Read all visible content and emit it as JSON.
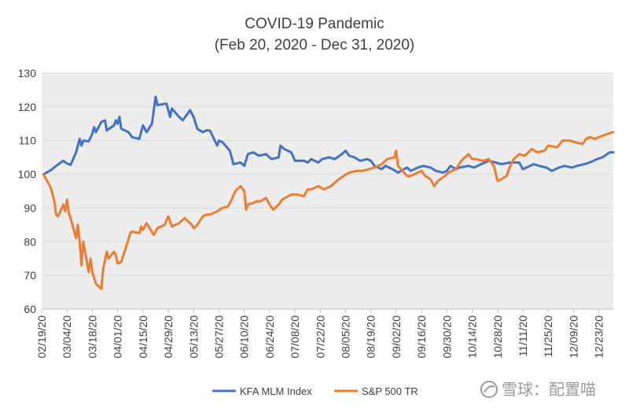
{
  "chart_data": {
    "type": "line",
    "title": "COVID-19 Pandemic",
    "subtitle": "(Feb 20, 2020 - Dec 31, 2020)",
    "xlabel": "",
    "ylabel": "",
    "ylim": [
      60,
      130
    ],
    "yticks": [
      60,
      70,
      80,
      90,
      100,
      110,
      120,
      130
    ],
    "xlim": [
      "2020-02-19",
      "2020-12-31"
    ],
    "xtick_labels": [
      "02/19/20",
      "03/04/20",
      "03/18/20",
      "04/01/20",
      "04/15/20",
      "04/29/20",
      "05/13/20",
      "05/27/20",
      "06/10/20",
      "06/24/20",
      "07/08/20",
      "07/22/20",
      "08/05/20",
      "08/19/20",
      "09/02/20",
      "09/16/20",
      "09/30/20",
      "10/14/20",
      "10/28/20",
      "11/11/20",
      "11/25/20",
      "12/09/20",
      "12/23/20"
    ],
    "grid": "horizontal",
    "legend_position": "bottom",
    "series": [
      {
        "name": "KFA MLM Index",
        "color": "#4472C4",
        "points": [
          [
            "2020-02-20",
            100.0
          ],
          [
            "2020-02-24",
            101.2
          ],
          [
            "2020-02-27",
            102.5
          ],
          [
            "2020-03-02",
            104.0
          ],
          [
            "2020-03-04",
            103.2
          ],
          [
            "2020-03-06",
            102.8
          ],
          [
            "2020-03-09",
            106.5
          ],
          [
            "2020-03-11",
            110.5
          ],
          [
            "2020-03-12",
            108.5
          ],
          [
            "2020-03-13",
            110.0
          ],
          [
            "2020-03-16",
            109.8
          ],
          [
            "2020-03-18",
            112.0
          ],
          [
            "2020-03-19",
            114.0
          ],
          [
            "2020-03-20",
            112.5
          ],
          [
            "2020-03-23",
            115.5
          ],
          [
            "2020-03-25",
            116.0
          ],
          [
            "2020-03-26",
            113.0
          ],
          [
            "2020-03-30",
            114.5
          ],
          [
            "2020-03-31",
            116.0
          ],
          [
            "2020-04-01",
            115.0
          ],
          [
            "2020-04-02",
            117.0
          ],
          [
            "2020-04-03",
            113.5
          ],
          [
            "2020-04-07",
            112.5
          ],
          [
            "2020-04-09",
            111.0
          ],
          [
            "2020-04-13",
            110.5
          ],
          [
            "2020-04-15",
            114.5
          ],
          [
            "2020-04-17",
            112.5
          ],
          [
            "2020-04-20",
            115.0
          ],
          [
            "2020-04-22",
            123.0
          ],
          [
            "2020-04-23",
            120.5
          ],
          [
            "2020-04-28",
            121.0
          ],
          [
            "2020-04-30",
            117.0
          ],
          [
            "2020-05-01",
            119.5
          ],
          [
            "2020-05-05",
            117.0
          ],
          [
            "2020-05-07",
            116.0
          ],
          [
            "2020-05-11",
            119.0
          ],
          [
            "2020-05-13",
            117.0
          ],
          [
            "2020-05-15",
            113.5
          ],
          [
            "2020-05-18",
            112.5
          ],
          [
            "2020-05-20",
            113.0
          ],
          [
            "2020-05-22",
            113.0
          ],
          [
            "2020-05-26",
            108.5
          ],
          [
            "2020-05-27",
            110.0
          ],
          [
            "2020-05-29",
            109.5
          ],
          [
            "2020-06-02",
            107.0
          ],
          [
            "2020-06-04",
            103.0
          ],
          [
            "2020-06-08",
            103.5
          ],
          [
            "2020-06-10",
            102.5
          ],
          [
            "2020-06-12",
            106.0
          ],
          [
            "2020-06-15",
            106.5
          ],
          [
            "2020-06-18",
            105.5
          ],
          [
            "2020-06-22",
            106.0
          ],
          [
            "2020-06-25",
            104.5
          ],
          [
            "2020-06-29",
            105.0
          ],
          [
            "2020-06-30",
            108.5
          ],
          [
            "2020-07-02",
            107.5
          ],
          [
            "2020-07-06",
            106.5
          ],
          [
            "2020-07-08",
            104.0
          ],
          [
            "2020-07-13",
            104.0
          ],
          [
            "2020-07-15",
            103.5
          ],
          [
            "2020-07-17",
            104.5
          ],
          [
            "2020-07-21",
            103.5
          ],
          [
            "2020-07-23",
            104.5
          ],
          [
            "2020-07-27",
            105.0
          ],
          [
            "2020-07-30",
            104.5
          ],
          [
            "2020-08-03",
            106.0
          ],
          [
            "2020-08-05",
            107.0
          ],
          [
            "2020-08-07",
            105.5
          ],
          [
            "2020-08-10",
            105.0
          ],
          [
            "2020-08-13",
            104.0
          ],
          [
            "2020-08-17",
            104.5
          ],
          [
            "2020-08-19",
            104.0
          ],
          [
            "2020-08-21",
            102.5
          ],
          [
            "2020-08-25",
            101.5
          ],
          [
            "2020-08-27",
            102.5
          ],
          [
            "2020-08-31",
            101.5
          ],
          [
            "2020-09-03",
            100.5
          ],
          [
            "2020-09-08",
            102.0
          ],
          [
            "2020-09-10",
            101.0
          ],
          [
            "2020-09-14",
            102.0
          ],
          [
            "2020-09-17",
            102.5
          ],
          [
            "2020-09-21",
            102.0
          ],
          [
            "2020-09-24",
            101.0
          ],
          [
            "2020-09-28",
            100.5
          ],
          [
            "2020-09-30",
            101.0
          ],
          [
            "2020-10-02",
            102.5
          ],
          [
            "2020-10-05",
            101.5
          ],
          [
            "2020-10-07",
            102.0
          ],
          [
            "2020-10-12",
            102.5
          ],
          [
            "2020-10-15",
            102.0
          ],
          [
            "2020-10-19",
            103.0
          ],
          [
            "2020-10-21",
            103.5
          ],
          [
            "2020-10-23",
            104.0
          ],
          [
            "2020-10-27",
            103.5
          ],
          [
            "2020-10-30",
            103.0
          ],
          [
            "2020-11-04",
            103.5
          ],
          [
            "2020-11-09",
            103.5
          ],
          [
            "2020-11-11",
            101.5
          ],
          [
            "2020-11-13",
            102.0
          ],
          [
            "2020-11-17",
            103.0
          ],
          [
            "2020-11-20",
            102.5
          ],
          [
            "2020-11-24",
            102.0
          ],
          [
            "2020-11-27",
            101.0
          ],
          [
            "2020-12-01",
            102.0
          ],
          [
            "2020-12-04",
            102.5
          ],
          [
            "2020-12-08",
            102.0
          ],
          [
            "2020-12-11",
            102.5
          ],
          [
            "2020-12-15",
            103.0
          ],
          [
            "2020-12-18",
            103.5
          ],
          [
            "2020-12-22",
            104.5
          ],
          [
            "2020-12-25",
            105.0
          ],
          [
            "2020-12-29",
            106.5
          ],
          [
            "2020-12-31",
            106.5
          ]
        ]
      },
      {
        "name": "S&P 500 TR",
        "color": "#ED7D31",
        "points": [
          [
            "2020-02-20",
            100.0
          ],
          [
            "2020-02-24",
            96.0
          ],
          [
            "2020-02-26",
            92.0
          ],
          [
            "2020-02-27",
            88.0
          ],
          [
            "2020-02-28",
            87.5
          ],
          [
            "2020-03-02",
            91.0
          ],
          [
            "2020-03-03",
            89.0
          ],
          [
            "2020-03-04",
            92.5
          ],
          [
            "2020-03-05",
            88.5
          ],
          [
            "2020-03-06",
            87.0
          ],
          [
            "2020-03-09",
            81.0
          ],
          [
            "2020-03-10",
            85.0
          ],
          [
            "2020-03-11",
            80.0
          ],
          [
            "2020-03-12",
            73.0
          ],
          [
            "2020-03-13",
            80.0
          ],
          [
            "2020-03-16",
            71.0
          ],
          [
            "2020-03-17",
            75.0
          ],
          [
            "2020-03-18",
            71.0
          ],
          [
            "2020-03-20",
            67.5
          ],
          [
            "2020-03-23",
            66.0
          ],
          [
            "2020-03-24",
            72.0
          ],
          [
            "2020-03-26",
            77.0
          ],
          [
            "2020-03-27",
            75.0
          ],
          [
            "2020-03-30",
            77.0
          ],
          [
            "2020-03-31",
            76.0
          ],
          [
            "2020-04-01",
            73.5
          ],
          [
            "2020-04-03",
            74.0
          ],
          [
            "2020-04-06",
            79.0
          ],
          [
            "2020-04-08",
            82.5
          ],
          [
            "2020-04-09",
            83.0
          ],
          [
            "2020-04-13",
            82.5
          ],
          [
            "2020-04-14",
            84.5
          ],
          [
            "2020-04-15",
            83.5
          ],
          [
            "2020-04-17",
            85.5
          ],
          [
            "2020-04-21",
            82.0
          ],
          [
            "2020-04-23",
            84.0
          ],
          [
            "2020-04-27",
            85.0
          ],
          [
            "2020-04-29",
            87.5
          ],
          [
            "2020-05-01",
            84.5
          ],
          [
            "2020-05-05",
            85.5
          ],
          [
            "2020-05-08",
            87.0
          ],
          [
            "2020-05-12",
            85.0
          ],
          [
            "2020-05-13",
            84.0
          ],
          [
            "2020-05-15",
            85.0
          ],
          [
            "2020-05-18",
            87.5
          ],
          [
            "2020-05-20",
            88.0
          ],
          [
            "2020-05-22",
            88.0
          ],
          [
            "2020-05-26",
            89.0
          ],
          [
            "2020-05-29",
            90.0
          ],
          [
            "2020-06-01",
            90.5
          ],
          [
            "2020-06-03",
            92.5
          ],
          [
            "2020-06-05",
            95.0
          ],
          [
            "2020-06-08",
            96.5
          ],
          [
            "2020-06-10",
            95.0
          ],
          [
            "2020-06-11",
            89.5
          ],
          [
            "2020-06-12",
            91.0
          ],
          [
            "2020-06-15",
            91.5
          ],
          [
            "2020-06-17",
            92.0
          ],
          [
            "2020-06-19",
            92.0
          ],
          [
            "2020-06-22",
            93.0
          ],
          [
            "2020-06-24",
            91.0
          ],
          [
            "2020-06-26",
            89.5
          ],
          [
            "2020-06-29",
            91.0
          ],
          [
            "2020-07-01",
            92.5
          ],
          [
            "2020-07-06",
            94.0
          ],
          [
            "2020-07-09",
            94.0
          ],
          [
            "2020-07-13",
            93.5
          ],
          [
            "2020-07-15",
            95.5
          ],
          [
            "2020-07-17",
            95.5
          ],
          [
            "2020-07-21",
            96.5
          ],
          [
            "2020-07-24",
            95.5
          ],
          [
            "2020-07-28",
            96.5
          ],
          [
            "2020-07-31",
            98.0
          ],
          [
            "2020-08-04",
            99.5
          ],
          [
            "2020-08-07",
            100.5
          ],
          [
            "2020-08-11",
            101.0
          ],
          [
            "2020-08-14",
            101.0
          ],
          [
            "2020-08-18",
            101.5
          ],
          [
            "2020-08-21",
            102.0
          ],
          [
            "2020-08-25",
            103.0
          ],
          [
            "2020-08-28",
            104.5
          ],
          [
            "2020-09-01",
            105.0
          ],
          [
            "2020-09-02",
            107.0
          ],
          [
            "2020-09-03",
            102.5
          ],
          [
            "2020-09-08",
            99.5
          ],
          [
            "2020-09-10",
            99.5
          ],
          [
            "2020-09-14",
            100.5
          ],
          [
            "2020-09-16",
            101.0
          ],
          [
            "2020-09-18",
            99.5
          ],
          [
            "2020-09-21",
            98.5
          ],
          [
            "2020-09-23",
            96.5
          ],
          [
            "2020-09-25",
            98.0
          ],
          [
            "2020-09-29",
            99.5
          ],
          [
            "2020-10-01",
            100.5
          ],
          [
            "2020-10-05",
            101.5
          ],
          [
            "2020-10-08",
            104.0
          ],
          [
            "2020-10-12",
            106.0
          ],
          [
            "2020-10-14",
            104.5
          ],
          [
            "2020-10-16",
            104.5
          ],
          [
            "2020-10-20",
            104.0
          ],
          [
            "2020-10-23",
            104.5
          ],
          [
            "2020-10-26",
            102.5
          ],
          [
            "2020-10-28",
            98.0
          ],
          [
            "2020-10-30",
            98.5
          ],
          [
            "2020-11-02",
            99.5
          ],
          [
            "2020-11-04",
            102.5
          ],
          [
            "2020-11-06",
            104.5
          ],
          [
            "2020-11-09",
            106.0
          ],
          [
            "2020-11-12",
            105.5
          ],
          [
            "2020-11-16",
            107.5
          ],
          [
            "2020-11-19",
            106.5
          ],
          [
            "2020-11-23",
            107.0
          ],
          [
            "2020-11-25",
            108.5
          ],
          [
            "2020-11-30",
            108.0
          ],
          [
            "2020-12-03",
            110.0
          ],
          [
            "2020-12-07",
            110.0
          ],
          [
            "2020-12-10",
            109.5
          ],
          [
            "2020-12-14",
            109.0
          ],
          [
            "2020-12-16",
            110.5
          ],
          [
            "2020-12-18",
            111.0
          ],
          [
            "2020-12-21",
            110.5
          ],
          [
            "2020-12-23",
            111.0
          ],
          [
            "2020-12-28",
            112.0
          ],
          [
            "2020-12-31",
            112.5
          ]
        ]
      }
    ]
  },
  "watermark": {
    "text": "雪球：配置喵",
    "icon": "snowball-logo-icon"
  }
}
